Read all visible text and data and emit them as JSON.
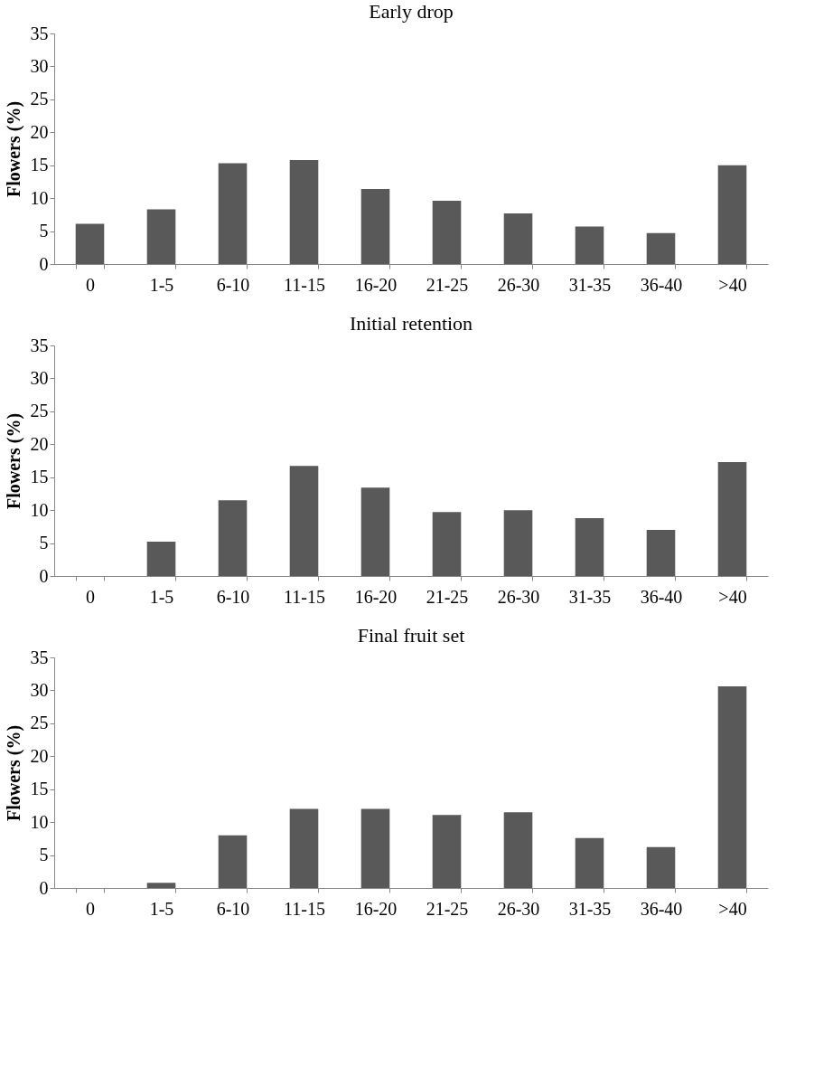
{
  "chart_data": [
    {
      "type": "bar",
      "title": "Early drop",
      "ylabel": "Flowers (%)",
      "categories": [
        "0",
        "1-5",
        "6-10",
        "11-15",
        "16-20",
        "21-25",
        "26-30",
        "31-35",
        "36-40",
        ">40"
      ],
      "values": [
        6.1,
        8.3,
        15.3,
        15.8,
        11.4,
        9.6,
        7.7,
        5.7,
        4.7,
        15.0
      ],
      "color": "#595959",
      "ylim": [
        0,
        35
      ],
      "yticks": [
        0,
        5,
        10,
        15,
        20,
        25,
        30,
        35
      ],
      "grid": false
    },
    {
      "type": "bar",
      "title": "Initial retention",
      "ylabel": "Flowers (%)",
      "categories": [
        "0",
        "1-5",
        "6-10",
        "11-15",
        "16-20",
        "21-25",
        "26-30",
        "31-35",
        "36-40",
        ">40"
      ],
      "values": [
        0,
        5.2,
        11.5,
        16.7,
        13.4,
        9.7,
        10.0,
        8.8,
        7.0,
        17.3
      ],
      "color": "#595959",
      "ylim": [
        0,
        35
      ],
      "yticks": [
        0,
        5,
        10,
        15,
        20,
        25,
        30,
        35
      ],
      "grid": false
    },
    {
      "type": "bar",
      "title": "Final fruit set",
      "ylabel": "Flowers (%)",
      "categories": [
        "0",
        "1-5",
        "6-10",
        "11-15",
        "16-20",
        "21-25",
        "26-30",
        "31-35",
        "36-40",
        ">40"
      ],
      "values": [
        0,
        0.8,
        8.0,
        12.0,
        12.0,
        11.1,
        11.5,
        7.6,
        6.2,
        30.6
      ],
      "color": "#595959",
      "ylim": [
        0,
        35
      ],
      "yticks": [
        0,
        5,
        10,
        15,
        20,
        25,
        30,
        35
      ],
      "grid": false
    }
  ]
}
